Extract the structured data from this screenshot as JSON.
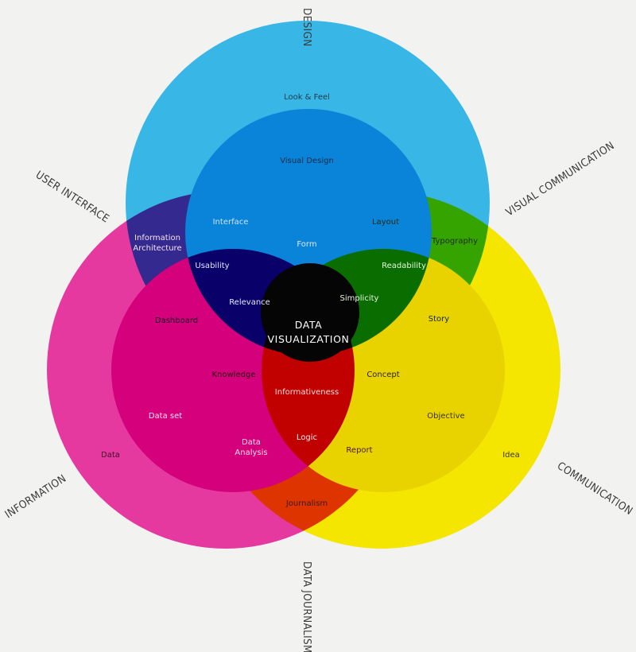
{
  "colors": {
    "background": "#f2f2f0",
    "cyan": "#38b6e6",
    "magenta": "#e6399f",
    "yellow": "#f5e600"
  },
  "center_label": [
    "DATA",
    "VISUALIZATION"
  ],
  "axes": {
    "design": "DESIGN",
    "visual_communication": "VISUAL COMMUNICATION",
    "communication": "COMMUNICATION",
    "data_journalism": "DATA JOURNALISM",
    "information": "INFORMATION",
    "user_interface": "USER INTERFACE"
  },
  "labels": {
    "look_feel": "Look & Feel",
    "visual_design": "Visual Design",
    "interface": "Interface",
    "layout": "Layout",
    "information_architecture_1": "Information",
    "information_architecture_2": "Architecture",
    "typography": "Typography",
    "form": "Form",
    "usability": "Usability",
    "readability": "Readability",
    "relevance": "Relevance",
    "simplicity": "Simplicity",
    "dashboard": "Dashboard",
    "story": "Story",
    "knowledge": "Knowledge",
    "concept": "Concept",
    "informativeness": "Informativeness",
    "data_set": "Data set",
    "objective": "Objective",
    "data_analysis_1": "Data",
    "data_analysis_2": "Analysis",
    "logic": "Logic",
    "report": "Report",
    "data": "Data",
    "idea": "Idea",
    "journalism": "Journalism"
  }
}
